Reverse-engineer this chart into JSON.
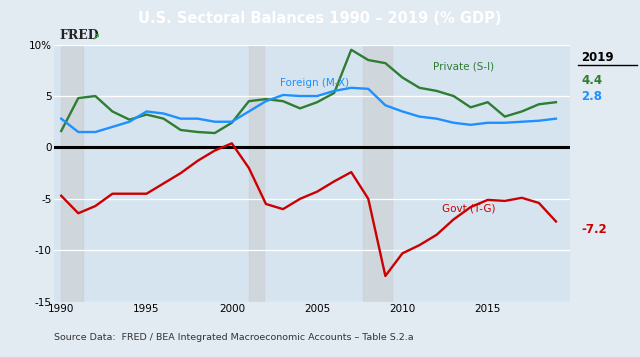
{
  "title": "U.S. Sectoral Balances 1990 – 2019 (% GDP)",
  "title_bg": "#1b3a5c",
  "title_color": "white",
  "source_text": "Source Data:  FRED / BEA Integrated Macroeconomic Accounts – Table S.2.a",
  "plot_bg": "#d6e4f0",
  "outer_bg": "#e2eaf2",
  "years": [
    1990,
    1991,
    1992,
    1993,
    1994,
    1995,
    1996,
    1997,
    1998,
    1999,
    2000,
    2001,
    2002,
    2003,
    2004,
    2005,
    2006,
    2007,
    2008,
    2009,
    2010,
    2011,
    2012,
    2013,
    2014,
    2015,
    2016,
    2017,
    2018,
    2019
  ],
  "private_vals": [
    1.6,
    4.8,
    5.0,
    3.5,
    2.7,
    3.2,
    2.8,
    1.7,
    1.5,
    1.4,
    2.4,
    4.5,
    4.7,
    4.5,
    3.8,
    4.4,
    5.3,
    9.5,
    8.5,
    8.2,
    6.8,
    5.8,
    5.5,
    5.0,
    3.9,
    4.4,
    3.0,
    3.5,
    4.2,
    4.4
  ],
  "foreign_vals": [
    2.8,
    1.5,
    1.5,
    2.0,
    2.5,
    3.5,
    3.3,
    2.8,
    2.8,
    2.5,
    2.5,
    3.5,
    4.5,
    5.1,
    5.0,
    5.0,
    5.5,
    5.8,
    5.7,
    4.1,
    3.5,
    3.0,
    2.8,
    2.4,
    2.2,
    2.4,
    2.4,
    2.5,
    2.6,
    2.8
  ],
  "govt_vals": [
    -4.7,
    -6.4,
    -5.7,
    -4.5,
    -4.5,
    -4.5,
    -3.5,
    -2.5,
    -1.3,
    -0.3,
    0.4,
    -2.0,
    -5.5,
    -6.0,
    -5.0,
    -4.3,
    -3.3,
    -2.4,
    -5.0,
    -12.5,
    -10.3,
    -9.5,
    -8.5,
    -7.0,
    -5.8,
    -5.1,
    -5.2,
    -4.9,
    -5.4,
    -7.2
  ],
  "private_color": "#2e7d32",
  "foreign_color": "#1e90ff",
  "govt_color": "#cc0000",
  "annotation_2019": "2019",
  "val_private_2019": "4.4",
  "val_foreign_2019": "2.8",
  "val_govt_2019": "-7.2",
  "recession_alpha": 0.45,
  "recession_color": "#c8c8c8"
}
